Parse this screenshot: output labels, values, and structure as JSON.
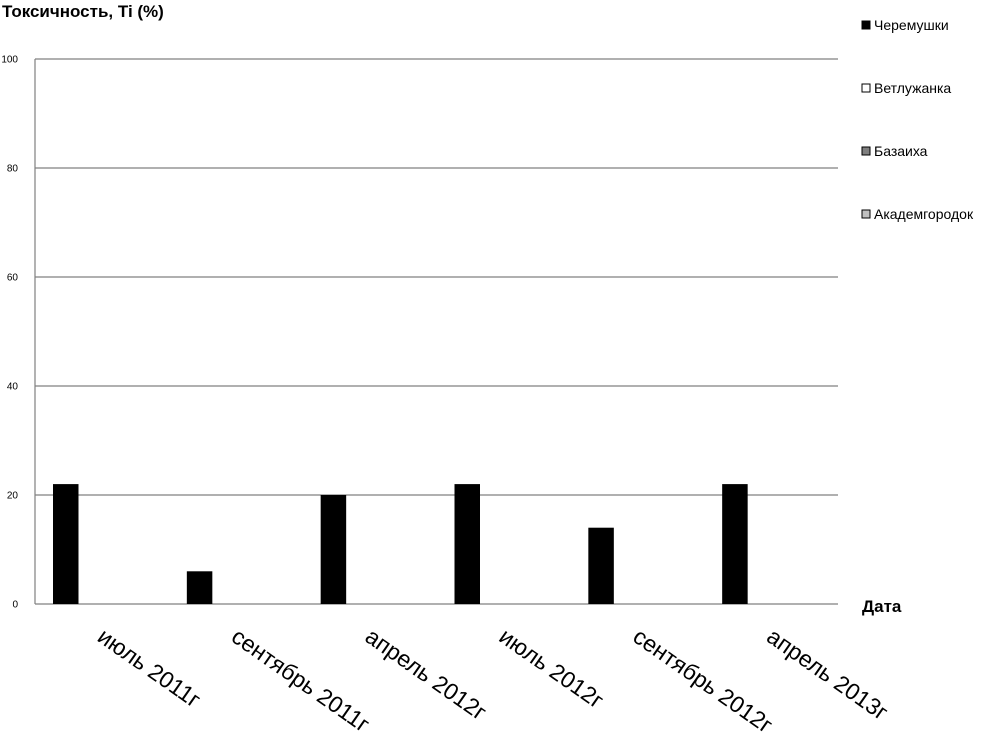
{
  "chart_data": {
    "type": "bar",
    "ylabel": "Токсичность, Ti (%)",
    "xlabel": "Дата",
    "ylim": [
      0,
      100
    ],
    "yticks": [
      "0",
      "20",
      "40",
      "60",
      "80",
      "100"
    ],
    "grid": true,
    "legend_position": "right",
    "categories": [
      "июль 2011г",
      "сентябрь 2011г",
      "апрель 2012г",
      "июль 2012г",
      "сентябрь 2012г",
      "апрель 2013г"
    ],
    "series": [
      {
        "name": "Черемушки",
        "color": "#000000",
        "values": [
          22,
          6,
          20,
          22,
          14,
          22
        ]
      },
      {
        "name": "Ветлужанка",
        "color": "#ffffff",
        "values": [
          0,
          0,
          0,
          0,
          0,
          0
        ]
      },
      {
        "name": "Базаиха",
        "color": "#7f7f7f",
        "values": [
          0,
          0,
          0,
          0,
          0,
          0
        ]
      },
      {
        "name": "Академгородок",
        "color": "#bfbfbf",
        "values": [
          0,
          0,
          0,
          0,
          0,
          0
        ]
      }
    ]
  }
}
